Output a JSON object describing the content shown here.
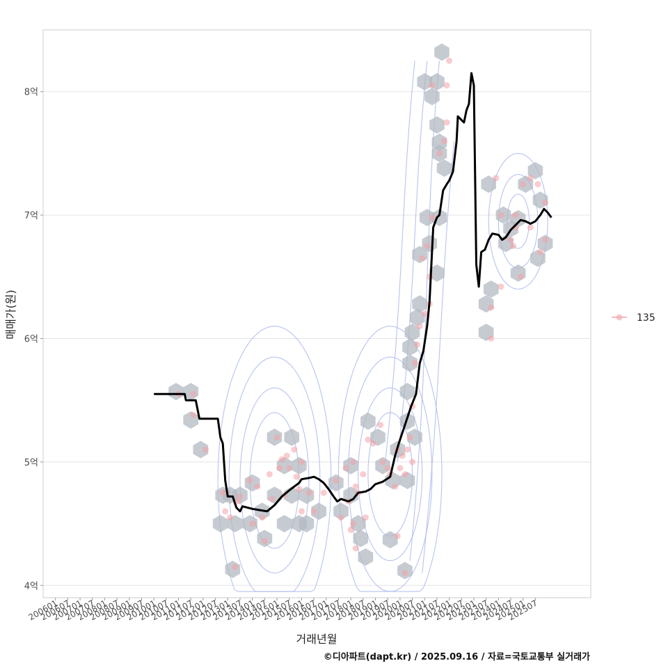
{
  "chart_data": {
    "type": "scatter",
    "xlabel": "거래년월",
    "ylabel": "매매가(원)",
    "ylim": [
      3.9,
      8.5
    ],
    "xlim": [
      2005.5,
      2027.75
    ],
    "y_ticks": [
      {
        "value": 4,
        "label": "4억"
      },
      {
        "value": 5,
        "label": "5억"
      },
      {
        "value": 6,
        "label": "6억"
      },
      {
        "value": 7,
        "label": "7억"
      },
      {
        "value": 8,
        "label": "8억"
      }
    ],
    "x_ticks": [
      "200601",
      "200607",
      "200701",
      "200707",
      "200801",
      "200807",
      "200901",
      "200907",
      "201001",
      "201007",
      "201101",
      "201107",
      "201201",
      "201207",
      "201301",
      "201307",
      "201401",
      "201407",
      "201501",
      "201507",
      "201601",
      "201607",
      "201701",
      "201707",
      "201801",
      "201807",
      "201901",
      "201907",
      "202001",
      "202007",
      "202101",
      "202107",
      "202201",
      "202207",
      "202301",
      "202307",
      "202401",
      "202407",
      "202501",
      "202507"
    ],
    "legend": [
      {
        "label": "135",
        "color": "#f4a3a8"
      }
    ],
    "hexbins": [
      [
        2010.9,
        5.57
      ],
      [
        2011.5,
        5.57
      ],
      [
        2011.5,
        5.34
      ],
      [
        2011.9,
        5.1
      ],
      [
        2012.8,
        4.73
      ],
      [
        2012.7,
        4.5
      ],
      [
        2013.1,
        4.73
      ],
      [
        2013.5,
        4.73
      ],
      [
        2013.3,
        4.5
      ],
      [
        2013.9,
        4.5
      ],
      [
        2014.0,
        4.83
      ],
      [
        2014.4,
        4.6
      ],
      [
        2014.5,
        4.38
      ],
      [
        2013.2,
        4.13
      ],
      [
        2014.9,
        5.2
      ],
      [
        2015.6,
        5.2
      ],
      [
        2015.3,
        4.97
      ],
      [
        2015.9,
        4.97
      ],
      [
        2014.9,
        4.73
      ],
      [
        2015.6,
        4.73
      ],
      [
        2015.3,
        4.5
      ],
      [
        2015.9,
        4.5
      ],
      [
        2016.2,
        4.73
      ],
      [
        2016.2,
        4.5
      ],
      [
        2016.7,
        4.6
      ],
      [
        2017.4,
        4.83
      ],
      [
        2018.0,
        4.97
      ],
      [
        2018.0,
        4.73
      ],
      [
        2017.6,
        4.6
      ],
      [
        2018.3,
        4.5
      ],
      [
        2018.4,
        4.38
      ],
      [
        2018.6,
        4.23
      ],
      [
        2018.7,
        5.33
      ],
      [
        2019.1,
        5.2
      ],
      [
        2019.3,
        4.97
      ],
      [
        2019.9,
        5.1
      ],
      [
        2020.3,
        5.33
      ],
      [
        2020.6,
        5.2
      ],
      [
        2019.7,
        4.85
      ],
      [
        2020.3,
        4.85
      ],
      [
        2019.6,
        4.37
      ],
      [
        2020.2,
        4.12
      ],
      [
        2020.3,
        5.57
      ],
      [
        2020.5,
        6.05
      ],
      [
        2020.4,
        5.8
      ],
      [
        2020.7,
        6.17
      ],
      [
        2020.4,
        5.93
      ],
      [
        2020.8,
        6.28
      ],
      [
        2020.8,
        6.68
      ],
      [
        2021.2,
        6.77
      ],
      [
        2021.5,
        6.53
      ],
      [
        2021.1,
        6.98
      ],
      [
        2021.6,
        6.98
      ],
      [
        2021.0,
        8.08
      ],
      [
        2021.5,
        8.08
      ],
      [
        2021.3,
        7.96
      ],
      [
        2021.7,
        8.32
      ],
      [
        2021.5,
        7.73
      ],
      [
        2021.6,
        7.5
      ],
      [
        2021.8,
        7.38
      ],
      [
        2021.6,
        7.59
      ],
      [
        2023.6,
        7.25
      ],
      [
        2023.7,
        6.4
      ],
      [
        2023.5,
        6.28
      ],
      [
        2023.5,
        6.05
      ],
      [
        2024.2,
        7.0
      ],
      [
        2024.5,
        6.89
      ],
      [
        2024.3,
        6.77
      ],
      [
        2024.8,
        6.97
      ],
      [
        2024.8,
        6.53
      ],
      [
        2025.1,
        7.25
      ],
      [
        2025.5,
        7.36
      ],
      [
        2025.7,
        7.12
      ],
      [
        2025.9,
        6.77
      ],
      [
        2025.6,
        6.65
      ]
    ],
    "points": [
      [
        2011.0,
        5.55
      ],
      [
        2011.6,
        5.55
      ],
      [
        2011.6,
        5.38
      ],
      [
        2012.1,
        5.1
      ],
      [
        2012.8,
        4.75
      ],
      [
        2012.9,
        4.6
      ],
      [
        2013.1,
        4.55
      ],
      [
        2013.5,
        4.72
      ],
      [
        2013.4,
        4.68
      ],
      [
        2013.9,
        4.85
      ],
      [
        2014.2,
        4.8
      ],
      [
        2014.0,
        4.5
      ],
      [
        2014.4,
        4.55
      ],
      [
        2014.5,
        4.36
      ],
      [
        2013.3,
        4.15
      ],
      [
        2014.7,
        4.9
      ],
      [
        2015.0,
        5.2
      ],
      [
        2015.2,
        5.02
      ],
      [
        2015.1,
        4.95
      ],
      [
        2015.4,
        5.05
      ],
      [
        2015.5,
        4.95
      ],
      [
        2015.7,
        5.1
      ],
      [
        2015.8,
        4.88
      ],
      [
        2015.9,
        4.78
      ],
      [
        2016.0,
        4.6
      ],
      [
        2016.3,
        4.75
      ],
      [
        2016.5,
        4.6
      ],
      [
        2016.0,
        5.0
      ],
      [
        2015.3,
        4.73
      ],
      [
        2014.8,
        4.7
      ],
      [
        2016.9,
        4.75
      ],
      [
        2017.4,
        4.85
      ],
      [
        2017.8,
        4.95
      ],
      [
        2017.6,
        4.55
      ],
      [
        2017.9,
        4.68
      ],
      [
        2018.1,
        4.5
      ],
      [
        2018.0,
        4.45
      ],
      [
        2018.2,
        4.8
      ],
      [
        2018.3,
        4.75
      ],
      [
        2018.1,
        5.0
      ],
      [
        2018.5,
        4.9
      ],
      [
        2018.6,
        4.55
      ],
      [
        2018.2,
        4.3
      ],
      [
        2018.7,
        5.18
      ],
      [
        2018.9,
        5.15
      ],
      [
        2019.2,
        5.3
      ],
      [
        2019.3,
        5.0
      ],
      [
        2019.5,
        4.95
      ],
      [
        2019.6,
        4.9
      ],
      [
        2019.8,
        4.8
      ],
      [
        2019.9,
        5.1
      ],
      [
        2020.0,
        4.95
      ],
      [
        2020.1,
        5.05
      ],
      [
        2020.2,
        4.9
      ],
      [
        2020.4,
        5.2
      ],
      [
        2020.3,
        5.1
      ],
      [
        2020.5,
        5.0
      ],
      [
        2019.9,
        4.4
      ],
      [
        2020.2,
        4.1
      ],
      [
        2020.5,
        5.45
      ],
      [
        2020.6,
        5.8
      ],
      [
        2020.7,
        5.95
      ],
      [
        2020.8,
        6.1
      ],
      [
        2021.0,
        6.2
      ],
      [
        2021.2,
        6.28
      ],
      [
        2020.9,
        6.65
      ],
      [
        2021.1,
        6.75
      ],
      [
        2021.2,
        6.5
      ],
      [
        2021.3,
        6.98
      ],
      [
        2021.6,
        7.5
      ],
      [
        2021.8,
        7.6
      ],
      [
        2021.9,
        7.75
      ],
      [
        2021.3,
        8.05
      ],
      [
        2021.9,
        8.05
      ],
      [
        2022.0,
        8.25
      ],
      [
        2023.7,
        6.0
      ],
      [
        2023.7,
        6.25
      ],
      [
        2024.1,
        6.42
      ],
      [
        2023.9,
        7.3
      ],
      [
        2024.1,
        7.0
      ],
      [
        2024.5,
        6.8
      ],
      [
        2024.6,
        6.75
      ],
      [
        2024.7,
        6.9
      ],
      [
        2024.9,
        6.5
      ],
      [
        2025.0,
        7.25
      ],
      [
        2025.3,
        7.3
      ],
      [
        2025.6,
        7.25
      ],
      [
        2025.9,
        7.1
      ],
      [
        2025.9,
        6.8
      ],
      [
        2025.7,
        6.7
      ],
      [
        2024.7,
        7.0
      ],
      [
        2025.3,
        6.9
      ]
    ],
    "trend_line": [
      [
        2010.0,
        5.55
      ],
      [
        2011.0,
        5.55
      ],
      [
        2011.25,
        5.55
      ],
      [
        2011.3,
        5.5
      ],
      [
        2011.7,
        5.5
      ],
      [
        2011.85,
        5.35
      ],
      [
        2012.6,
        5.35
      ],
      [
        2012.7,
        5.2
      ],
      [
        2012.8,
        5.15
      ],
      [
        2012.9,
        4.85
      ],
      [
        2013.0,
        4.72
      ],
      [
        2013.2,
        4.72
      ],
      [
        2013.35,
        4.63
      ],
      [
        2013.5,
        4.6
      ],
      [
        2013.6,
        4.64
      ],
      [
        2014.0,
        4.62
      ],
      [
        2014.3,
        4.61
      ],
      [
        2014.6,
        4.6
      ],
      [
        2014.9,
        4.65
      ],
      [
        2015.2,
        4.72
      ],
      [
        2015.5,
        4.77
      ],
      [
        2015.7,
        4.8
      ],
      [
        2015.9,
        4.83
      ],
      [
        2016.0,
        4.86
      ],
      [
        2016.3,
        4.87
      ],
      [
        2016.5,
        4.88
      ],
      [
        2016.7,
        4.86
      ],
      [
        2016.9,
        4.83
      ],
      [
        2017.1,
        4.78
      ],
      [
        2017.3,
        4.72
      ],
      [
        2017.45,
        4.68
      ],
      [
        2017.6,
        4.7
      ],
      [
        2017.9,
        4.68
      ],
      [
        2018.1,
        4.7
      ],
      [
        2018.3,
        4.75
      ],
      [
        2018.6,
        4.76
      ],
      [
        2018.8,
        4.78
      ],
      [
        2019.0,
        4.82
      ],
      [
        2019.3,
        4.84
      ],
      [
        2019.6,
        4.88
      ],
      [
        2019.8,
        5.05
      ],
      [
        2019.95,
        5.15
      ],
      [
        2020.2,
        5.3
      ],
      [
        2020.45,
        5.45
      ],
      [
        2020.65,
        5.55
      ],
      [
        2020.8,
        5.8
      ],
      [
        2020.95,
        5.9
      ],
      [
        2021.1,
        6.1
      ],
      [
        2021.2,
        6.3
      ],
      [
        2021.35,
        6.9
      ],
      [
        2021.5,
        6.98
      ],
      [
        2021.6,
        7.0
      ],
      [
        2021.75,
        7.2
      ],
      [
        2021.9,
        7.25
      ],
      [
        2022.0,
        7.28
      ],
      [
        2022.15,
        7.35
      ],
      [
        2022.3,
        7.6
      ],
      [
        2022.35,
        7.8
      ],
      [
        2022.45,
        7.78
      ],
      [
        2022.6,
        7.75
      ],
      [
        2022.7,
        7.85
      ],
      [
        2022.8,
        7.9
      ],
      [
        2022.9,
        8.15
      ],
      [
        2023.0,
        8.05
      ],
      [
        2023.1,
        6.6
      ],
      [
        2023.2,
        6.42
      ],
      [
        2023.3,
        6.7
      ],
      [
        2023.45,
        6.72
      ],
      [
        2023.6,
        6.8
      ],
      [
        2023.75,
        6.85
      ],
      [
        2024.0,
        6.84
      ],
      [
        2024.15,
        6.8
      ],
      [
        2024.3,
        6.82
      ],
      [
        2024.5,
        6.88
      ],
      [
        2024.7,
        6.92
      ],
      [
        2024.9,
        6.96
      ],
      [
        2025.1,
        6.95
      ],
      [
        2025.3,
        6.93
      ],
      [
        2025.5,
        6.95
      ],
      [
        2025.7,
        7.0
      ],
      [
        2025.85,
        7.05
      ],
      [
        2026.0,
        7.02
      ],
      [
        2026.15,
        6.98
      ]
    ],
    "density_contours": [
      {
        "peaks": [
          [
            2014.9,
            4.85,
            1.0,
            0.55
          ],
          [
            2019.6,
            4.9,
            0.9,
            0.5
          ]
        ],
        "level": 1
      },
      {
        "peaks": [
          [
            2014.9,
            4.85,
            1.4,
            0.75
          ],
          [
            2019.6,
            4.9,
            1.3,
            0.7
          ]
        ],
        "level": 2
      },
      {
        "peaks": [
          [
            2014.9,
            4.85,
            1.85,
            1.0
          ],
          [
            2019.6,
            4.9,
            1.7,
            0.95
          ]
        ],
        "level": 3
      },
      {
        "peaks": [
          [
            2014.9,
            4.85,
            2.3,
            1.25
          ],
          [
            2019.6,
            4.9,
            2.1,
            1.2
          ]
        ],
        "level": 4
      },
      {
        "peaks": [
          [
            2024.8,
            6.95,
            0.45,
            0.22
          ]
        ],
        "level": 5
      },
      {
        "peaks": [
          [
            2024.8,
            6.95,
            0.8,
            0.38
          ]
        ],
        "level": 6
      },
      {
        "peaks": [
          [
            2024.8,
            6.95,
            1.2,
            0.55
          ]
        ],
        "level": 7
      }
    ]
  },
  "caption": "©디아파트(dapt.kr) / 2025.09.16 / 자료=국토교통부 실거래가"
}
